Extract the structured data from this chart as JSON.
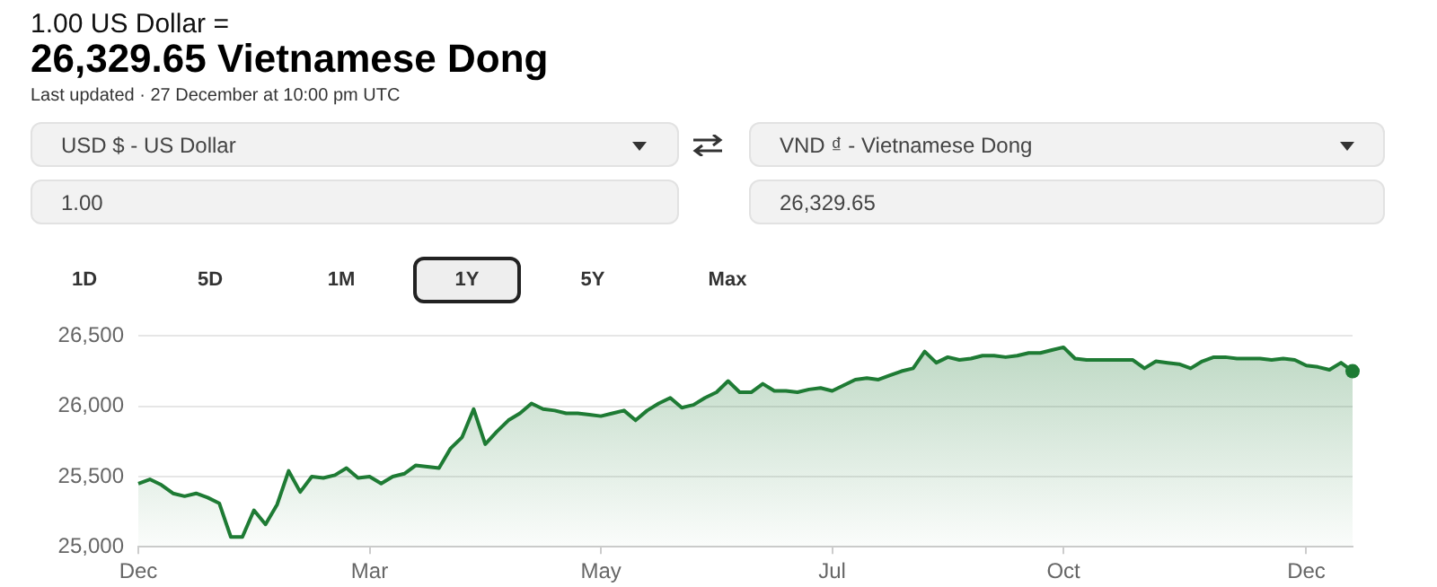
{
  "chart_data": {
    "type": "area",
    "title": "1.00 US Dollar =",
    "subtitle": "26,329.65 Vietnamese Dong",
    "annotations": [
      "Last updated · 27 December at 10:00 pm UTC",
      "USD $ - US Dollar",
      "VND ₫ - Vietnamese Dong",
      "1.00",
      "26,329.65",
      "1D",
      "5D",
      "1M",
      "1Y",
      "5Y",
      "Max"
    ],
    "categories": [
      "Dec",
      null,
      null,
      null,
      null,
      null,
      null,
      null,
      null,
      null,
      null,
      null,
      null,
      null,
      null,
      null,
      null,
      null,
      null,
      null,
      "Mar",
      null,
      null,
      null,
      null,
      null,
      null,
      null,
      null,
      null,
      null,
      null,
      null,
      null,
      null,
      null,
      null,
      null,
      null,
      null,
      "May",
      null,
      null,
      null,
      null,
      null,
      null,
      null,
      null,
      null,
      null,
      null,
      null,
      null,
      null,
      null,
      null,
      null,
      null,
      null,
      "Jul",
      null,
      null,
      null,
      null,
      null,
      null,
      null,
      null,
      null,
      null,
      null,
      null,
      null,
      null,
      null,
      null,
      null,
      null,
      null,
      "Oct",
      null,
      null,
      null,
      null,
      null,
      null,
      null,
      null,
      null,
      null,
      null,
      null,
      null,
      null,
      null,
      null,
      null,
      null,
      null,
      null,
      "Dec",
      null,
      null,
      null,
      null
    ],
    "values": [
      25450,
      25480,
      25440,
      25380,
      25360,
      25380,
      25350,
      25310,
      25070,
      25070,
      25260,
      25160,
      25300,
      25540,
      25390,
      25500,
      25490,
      25510,
      25560,
      25490,
      25500,
      25450,
      25500,
      25520,
      25580,
      25570,
      25560,
      25700,
      25780,
      25980,
      25730,
      25820,
      25900,
      25950,
      26020,
      25980,
      25970,
      25950,
      25950,
      25940,
      25930,
      25950,
      25970,
      25900,
      25970,
      26020,
      26060,
      25990,
      26010,
      26060,
      26100,
      26180,
      26100,
      26100,
      26160,
      26110,
      26110,
      26100,
      26120,
      26130,
      26110,
      26150,
      26190,
      26200,
      26190,
      26220,
      26250,
      26270,
      26390,
      26310,
      26350,
      26330,
      26340,
      26360,
      26360,
      26350,
      26360,
      26380,
      26380,
      26400,
      26420,
      26340,
      26330,
      26330,
      26330,
      26330,
      26330,
      26270,
      26320,
      26310,
      26300,
      26270,
      26320,
      26350,
      26350,
      26340,
      26340,
      26340,
      26330,
      26340,
      26330,
      26290,
      26280,
      26260,
      26310,
      26250
    ],
    "color": "#1e7b34",
    "ylim": [
      25000,
      26500
    ],
    "yticks": [
      {
        "value": 25000,
        "label": "25,000"
      },
      {
        "value": 25500,
        "label": "25,500"
      },
      {
        "value": 26000,
        "label": "26,000"
      },
      {
        "value": 26500,
        "label": "26,500"
      }
    ],
    "grid": "y"
  }
}
